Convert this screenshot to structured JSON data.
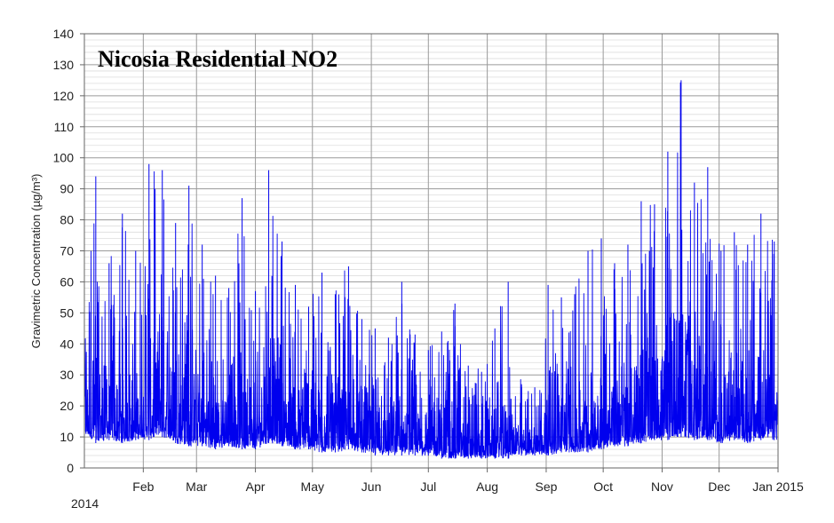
{
  "chart_data": {
    "type": "line",
    "title": "Nicosia Residential NO2",
    "ylabel": "Gravimetric Concentration (µg/m³)",
    "xlabel": "",
    "ylim": [
      0,
      140
    ],
    "yticks": [
      0,
      10,
      20,
      30,
      40,
      50,
      60,
      70,
      80,
      90,
      100,
      110,
      120,
      130,
      140
    ],
    "xlim": [
      "2014-01-01",
      "2015-01-01"
    ],
    "x_tick_labels": [
      "Feb",
      "Mar",
      "Apr",
      "May",
      "Jun",
      "Jul",
      "Aug",
      "Sep",
      "Oct",
      "Nov",
      "Dec",
      "Jan 2015"
    ],
    "x_tick_dates": [
      "2014-02-01",
      "2014-03-01",
      "2014-04-01",
      "2014-05-01",
      "2014-06-01",
      "2014-07-01",
      "2014-08-01",
      "2014-09-01",
      "2014-10-01",
      "2014-11-01",
      "2014-12-01",
      "2015-01-01"
    ],
    "x_start_label": "2014",
    "grid": true,
    "series": [
      {
        "color": "#0000ee",
        "resolution": "daily peaks (approx., read from chart envelope)",
        "x": [
          "2014-01-01",
          "2014-01-07",
          "2014-01-14",
          "2014-01-21",
          "2014-01-28",
          "2014-02-04",
          "2014-02-11",
          "2014-02-18",
          "2014-02-25",
          "2014-03-04",
          "2014-03-11",
          "2014-03-18",
          "2014-03-25",
          "2014-04-01",
          "2014-04-08",
          "2014-04-15",
          "2014-04-22",
          "2014-04-29",
          "2014-05-06",
          "2014-05-13",
          "2014-05-20",
          "2014-05-27",
          "2014-06-03",
          "2014-06-10",
          "2014-06-17",
          "2014-06-24",
          "2014-07-01",
          "2014-07-08",
          "2014-07-15",
          "2014-07-22",
          "2014-07-29",
          "2014-08-05",
          "2014-08-12",
          "2014-08-19",
          "2014-08-26",
          "2014-09-02",
          "2014-09-09",
          "2014-09-16",
          "2014-09-23",
          "2014-09-30",
          "2014-10-07",
          "2014-10-14",
          "2014-10-21",
          "2014-10-28",
          "2014-11-04",
          "2014-11-11",
          "2014-11-18",
          "2014-11-25",
          "2014-12-02",
          "2014-12-09",
          "2014-12-16",
          "2014-12-23",
          "2014-12-30"
        ],
        "peak": [
          63,
          94,
          66,
          82,
          70,
          98,
          96,
          79,
          91,
          72,
          62,
          58,
          87,
          57,
          96,
          73,
          59,
          52,
          63,
          56,
          65,
          48,
          45,
          42,
          60,
          43,
          38,
          44,
          53,
          33,
          31,
          45,
          60,
          27,
          26,
          59,
          55,
          56,
          70,
          74,
          66,
          72,
          86,
          85,
          102,
          125,
          92,
          97,
          70,
          76,
          72,
          82,
          73
        ],
        "base": [
          10,
          8,
          9,
          8,
          9,
          9,
          10,
          8,
          7,
          7,
          6,
          7,
          6,
          6,
          8,
          7,
          6,
          6,
          5,
          5,
          6,
          5,
          4,
          4,
          4,
          4,
          4,
          3,
          3,
          3,
          3,
          3,
          3,
          4,
          4,
          4,
          5,
          5,
          5,
          6,
          7,
          7,
          8,
          9,
          9,
          10,
          9,
          9,
          8,
          9,
          8,
          9,
          9
        ]
      }
    ]
  }
}
